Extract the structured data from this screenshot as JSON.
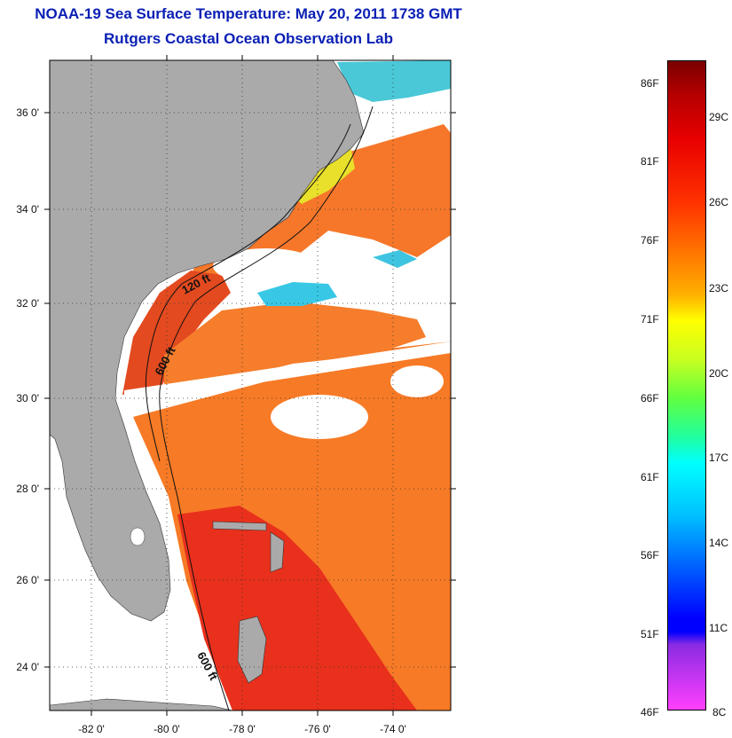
{
  "header": {
    "title": "NOAA-19 Sea Surface Temperature:  May 20, 2011 1738 GMT",
    "subtitle": "Rutgers Coastal Ocean Observation Lab"
  },
  "map": {
    "lat_ticks": [
      "36 0'",
      "34 0'",
      "32 0'",
      "30 0'",
      "28 0'",
      "26 0'",
      "24 0'"
    ],
    "lon_ticks": [
      "-82 0'",
      "-80 0'",
      "-78 0'",
      "-76 0'",
      "-74 0'"
    ],
    "isobath_labels": [
      "120 ft",
      "600 ft",
      "600 ft"
    ],
    "colors": {
      "land": "#aaaaaa",
      "cloud": "#ffffff",
      "warm_water": "#f0451e",
      "mid_water": "#f77a26",
      "cool_water": "#38c8e6"
    }
  },
  "colorbar": {
    "fahrenheit_labels": [
      "86F",
      "81F",
      "76F",
      "71F",
      "66F",
      "61F",
      "56F",
      "51F",
      "46F"
    ],
    "celsius_labels": [
      "29C",
      "26C",
      "23C",
      "20C",
      "17C",
      "14C",
      "11C",
      "8C"
    ]
  }
}
